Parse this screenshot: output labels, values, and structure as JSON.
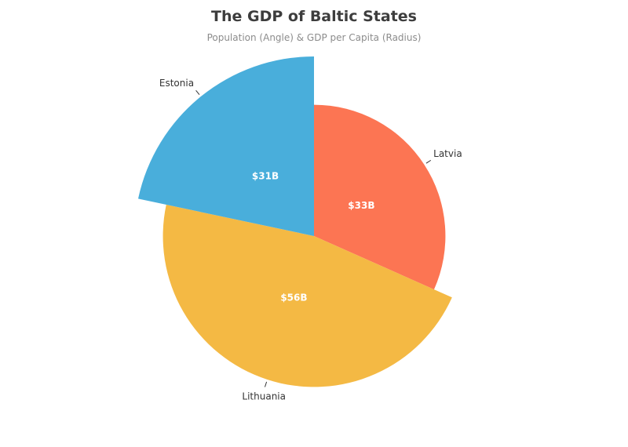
{
  "chart_data": {
    "type": "pie",
    "title": "The GDP of Baltic States",
    "subtitle": "Population (Angle) & GDP per Capita (Radius)",
    "slices": [
      {
        "name": "Latvia",
        "value_label": "$33B",
        "color": "#fc7553",
        "population": 1.9,
        "gdp_per_capita": 17.4,
        "gdp": 33
      },
      {
        "name": "Lithuania",
        "value_label": "$56B",
        "color": "#f4b944",
        "population": 2.8,
        "gdp_per_capita": 20.0,
        "gdp": 56
      },
      {
        "name": "Estonia",
        "value_label": "$31B",
        "color": "#49aedb",
        "population": 1.3,
        "gdp_per_capita": 23.8,
        "gdp": 31
      }
    ],
    "legend": "none"
  }
}
